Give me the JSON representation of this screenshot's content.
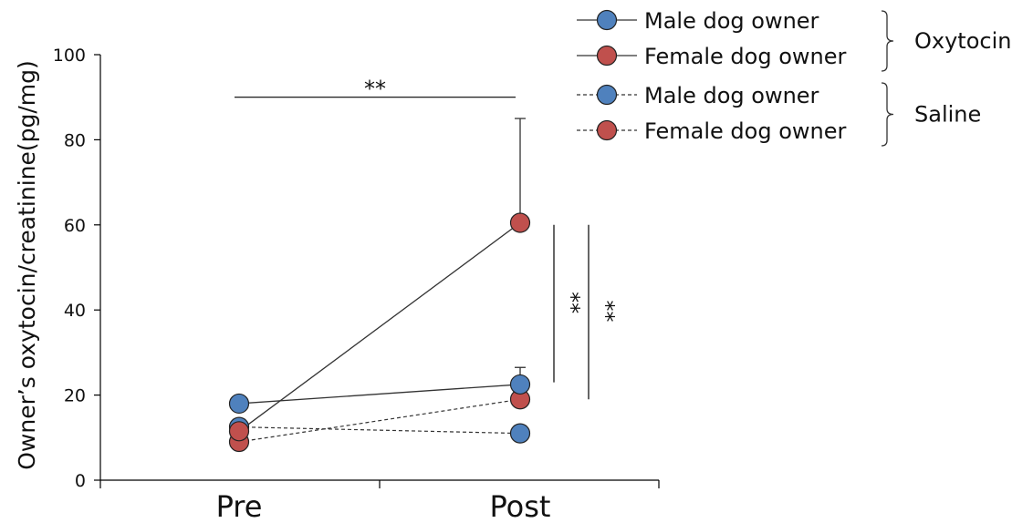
{
  "chart_data": {
    "type": "line",
    "title": "",
    "xlabel": "",
    "ylabel": "Owner’s oxytocin/creatinine(pg/mg)",
    "categories": [
      "Pre",
      "Post"
    ],
    "ylim": [
      0,
      100
    ],
    "yticks": [
      "0",
      "20",
      "40",
      "60",
      "80",
      "100"
    ],
    "series": [
      {
        "name": "Female dog owner",
        "group": "Saline",
        "line": "dashed",
        "color": "#c0504d",
        "values": [
          9,
          19
        ],
        "error_up": [
          null,
          null
        ]
      },
      {
        "name": "Male dog owner",
        "group": "Saline",
        "line": "dashed",
        "color": "#4f81bd",
        "values": [
          12.5,
          11
        ],
        "error_up": [
          null,
          null
        ]
      },
      {
        "name": "Male dog owner",
        "group": "Oxytocin",
        "line": "solid",
        "color": "#4f81bd",
        "values": [
          18,
          22.5
        ],
        "error_up": [
          null,
          26.5
        ]
      },
      {
        "name": "Female dog owner",
        "group": "Oxytocin",
        "line": "solid",
        "color": "#c0504d",
        "values": [
          11.5,
          60.5
        ],
        "error_up": [
          null,
          85
        ]
      }
    ],
    "annotations": [
      {
        "text": "**",
        "type": "horizontal-bracket",
        "from": "Pre",
        "to": "Post",
        "y": 90
      },
      {
        "text": "**",
        "type": "vertical-bracket",
        "slot": 1,
        "y_range": [
          23,
          60
        ]
      },
      {
        "text": "**",
        "type": "vertical-bracket",
        "slot": 2,
        "y_range": [
          19,
          60
        ]
      }
    ],
    "legend": {
      "placement": "top-right",
      "entries": [
        {
          "label": "Male dog owner",
          "group": "Oxytocin",
          "line": "solid",
          "color": "#4f81bd"
        },
        {
          "label": "Female dog owner",
          "group": "Oxytocin",
          "line": "solid",
          "color": "#c0504d"
        },
        {
          "label": "Male dog owner",
          "group": "Saline",
          "line": "dashed",
          "color": "#4f81bd"
        },
        {
          "label": "Female dog owner",
          "group": "Saline",
          "line": "dashed",
          "color": "#c0504d"
        }
      ],
      "groups": [
        "Oxytocin",
        "Saline"
      ]
    },
    "grid": false
  }
}
